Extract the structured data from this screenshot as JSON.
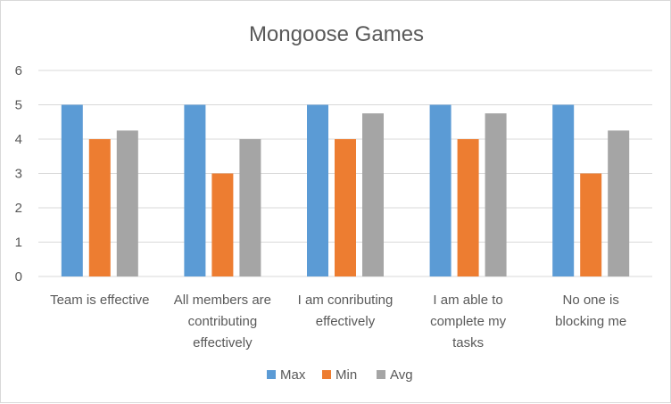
{
  "chart_data": {
    "type": "bar",
    "title": "Mongoose Games",
    "categories": [
      [
        "Team is effective"
      ],
      [
        "All members are",
        "contributing",
        "effectively"
      ],
      [
        "I am conributing",
        "effectively"
      ],
      [
        "I am able to",
        "complete my",
        "tasks"
      ],
      [
        "No one is",
        "blocking me"
      ]
    ],
    "series": [
      {
        "name": "Max",
        "color": "#5b9bd5",
        "values": [
          5,
          5,
          5,
          5,
          5
        ]
      },
      {
        "name": "Min",
        "color": "#ed7d31",
        "values": [
          4,
          3,
          4,
          4,
          3
        ]
      },
      {
        "name": "Avg",
        "color": "#a5a5a5",
        "values": [
          4.25,
          4,
          4.75,
          4.75,
          4.25
        ]
      }
    ],
    "ylim": [
      0,
      6
    ],
    "yticks": [
      0,
      1,
      2,
      3,
      4,
      5,
      6
    ],
    "grid": true,
    "legend": "bottom",
    "xlabel": "",
    "ylabel": ""
  }
}
